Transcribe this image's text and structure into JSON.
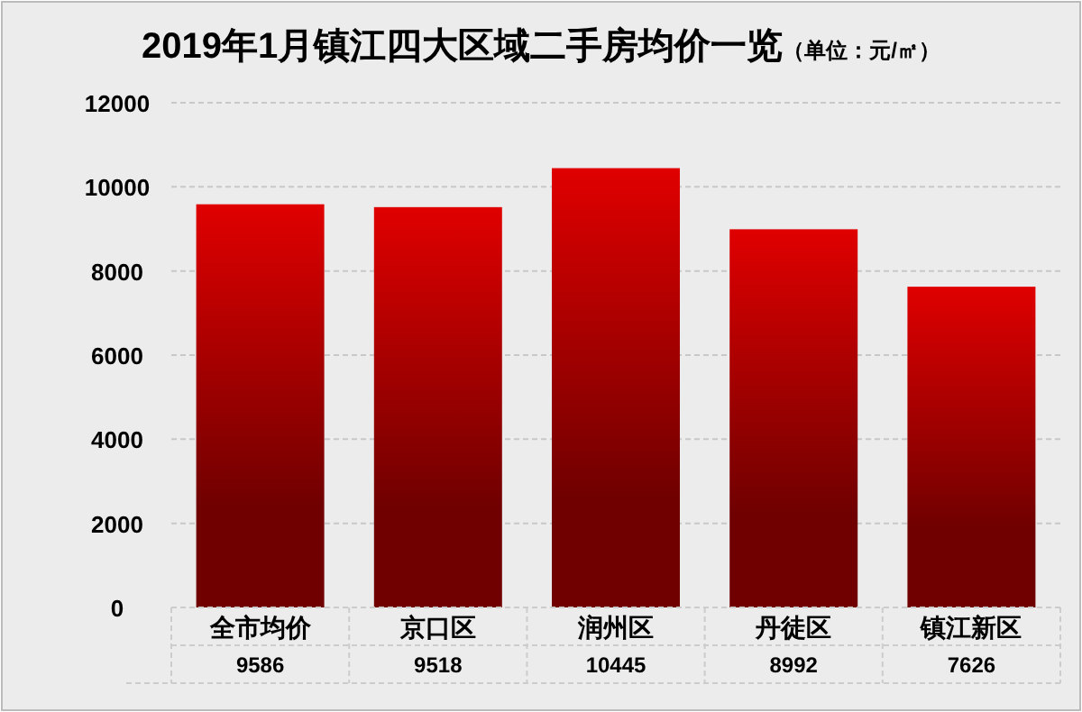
{
  "chart_data": {
    "type": "bar",
    "title": "2019年1月镇江四大区域二手房均价一览",
    "subtitle": "（单位：元/㎡）",
    "categories": [
      "全市均价",
      "京口区",
      "润州区",
      "丹徒区",
      "镇江新区"
    ],
    "values": [
      9586,
      9518,
      10445,
      8992,
      7626
    ],
    "color": "#e00000",
    "ylim": [
      0,
      12000
    ],
    "yticks": [
      0,
      2000,
      4000,
      6000,
      8000,
      10000,
      12000
    ],
    "grid": "y",
    "data_labels": true
  }
}
